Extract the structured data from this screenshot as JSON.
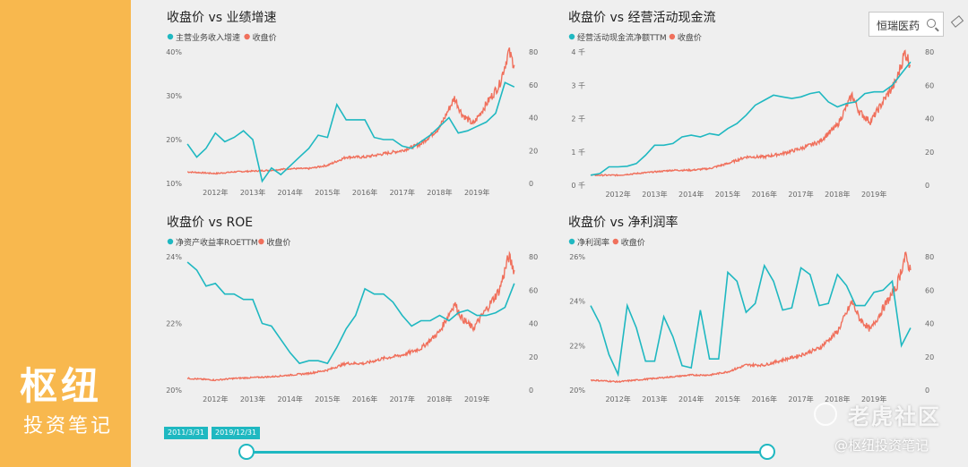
{
  "brand": {
    "title": "枢纽",
    "subtitle": "投资笔记"
  },
  "search": {
    "value": "恒瑞医药"
  },
  "slider": {
    "start": "2011/3/31",
    "end": "2019/12/31"
  },
  "watermark": {
    "site": "老虎社区",
    "author": "@枢纽投资笔记"
  },
  "colors": {
    "teal": "#1fb8c1",
    "red": "#f0705c",
    "sidebar": "#f8b84e"
  },
  "chart_data": [
    {
      "type": "line",
      "title": "收盘价 vs 业绩增速",
      "x_ticks": [
        "2012年",
        "2013年",
        "2014年",
        "2015年",
        "2016年",
        "2017年",
        "2018年",
        "2019年"
      ],
      "left_ticks": [
        "40%",
        "30%",
        "20%",
        "10%"
      ],
      "right_ticks": [
        "80",
        "60",
        "40",
        "20",
        "0"
      ],
      "ylim_left": [
        10,
        40
      ],
      "ylim_right": [
        0,
        80
      ],
      "series": [
        {
          "name": "主营业务收入增速",
          "axis": "left",
          "x": [
            2011.25,
            2011.5,
            2011.75,
            2012.0,
            2012.25,
            2012.5,
            2012.75,
            2013.0,
            2013.25,
            2013.5,
            2013.75,
            2014.0,
            2014.25,
            2014.5,
            2014.75,
            2015.0,
            2015.25,
            2015.5,
            2015.75,
            2016.0,
            2016.25,
            2016.5,
            2016.75,
            2017.0,
            2017.25,
            2017.5,
            2017.75,
            2018.0,
            2018.25,
            2018.5,
            2018.75,
            2019.0,
            2019.25,
            2019.5,
            2019.75,
            2020.0
          ],
          "values": [
            19,
            16,
            18,
            21.5,
            19.5,
            20.5,
            22,
            20,
            10.5,
            13.5,
            12,
            14,
            16,
            18,
            21,
            20.5,
            28,
            24.5,
            24.5,
            24.5,
            20.5,
            20,
            20,
            18.5,
            18,
            19.5,
            21,
            23,
            25,
            21.5,
            22,
            23,
            24,
            26,
            33,
            32
          ]
        },
        {
          "name": "收盘价",
          "axis": "right",
          "anchors": [
            [
              2011.25,
              7
            ],
            [
              2012.0,
              6
            ],
            [
              2012.5,
              7
            ],
            [
              2013.0,
              7.5
            ],
            [
              2013.5,
              8
            ],
            [
              2014.0,
              9
            ],
            [
              2014.5,
              9
            ],
            [
              2015.0,
              11
            ],
            [
              2015.5,
              16
            ],
            [
              2016.0,
              16
            ],
            [
              2016.5,
              18
            ],
            [
              2017.0,
              20
            ],
            [
              2017.5,
              24
            ],
            [
              2018.0,
              34
            ],
            [
              2018.4,
              52
            ],
            [
              2018.6,
              42
            ],
            [
              2018.9,
              36
            ],
            [
              2019.3,
              50
            ],
            [
              2019.6,
              60
            ],
            [
              2019.85,
              80
            ],
            [
              2020.0,
              72
            ]
          ]
        }
      ]
    },
    {
      "type": "line",
      "title": "收盘价 vs 经营活动现金流",
      "x_ticks": [
        "2012年",
        "2013年",
        "2014年",
        "2015年",
        "2016年",
        "2017年",
        "2018年",
        "2019年"
      ],
      "left_ticks": [
        "4 千",
        "3 千",
        "2 千",
        "1 千",
        "0 千"
      ],
      "right_ticks": [
        "80",
        "60",
        "40",
        "20",
        "0"
      ],
      "ylim_left": [
        0,
        4000
      ],
      "ylim_right": [
        0,
        80
      ],
      "series": [
        {
          "name": "经营活动现金流净额TTM",
          "axis": "left",
          "x": [
            2011.25,
            2011.5,
            2011.75,
            2012.0,
            2012.25,
            2012.5,
            2012.75,
            2013.0,
            2013.25,
            2013.5,
            2013.75,
            2014.0,
            2014.25,
            2014.5,
            2014.75,
            2015.0,
            2015.25,
            2015.5,
            2015.75,
            2016.0,
            2016.25,
            2016.5,
            2016.75,
            2017.0,
            2017.25,
            2017.5,
            2017.75,
            2018.0,
            2018.25,
            2018.5,
            2018.75,
            2019.0,
            2019.25,
            2019.5,
            2019.75,
            2020.0
          ],
          "values": [
            300,
            350,
            550,
            550,
            570,
            650,
            900,
            1200,
            1200,
            1250,
            1450,
            1500,
            1450,
            1550,
            1500,
            1700,
            1850,
            2100,
            2400,
            2550,
            2700,
            2650,
            2600,
            2650,
            2750,
            2800,
            2500,
            2350,
            2450,
            2500,
            2750,
            2800,
            2800,
            3000,
            3350,
            3700
          ]
        },
        {
          "name": "收盘价",
          "axis": "right",
          "anchors": [
            [
              2011.25,
              6
            ],
            [
              2012.0,
              6
            ],
            [
              2012.5,
              7
            ],
            [
              2013.0,
              8
            ],
            [
              2013.5,
              9
            ],
            [
              2014.0,
              9
            ],
            [
              2014.5,
              10
            ],
            [
              2015.0,
              13
            ],
            [
              2015.5,
              17
            ],
            [
              2016.0,
              17
            ],
            [
              2016.5,
              19
            ],
            [
              2017.0,
              22
            ],
            [
              2017.5,
              26
            ],
            [
              2018.0,
              36
            ],
            [
              2018.4,
              54
            ],
            [
              2018.6,
              44
            ],
            [
              2018.9,
              38
            ],
            [
              2019.3,
              52
            ],
            [
              2019.6,
              62
            ],
            [
              2019.85,
              80
            ],
            [
              2020.0,
              72
            ]
          ]
        }
      ]
    },
    {
      "type": "line",
      "title": "收盘价 vs ROE",
      "x_ticks": [
        "2012年",
        "2013年",
        "2014年",
        "2015年",
        "2016年",
        "2017年",
        "2018年",
        "2019年"
      ],
      "left_ticks": [
        "24%",
        "22%",
        "20%"
      ],
      "right_ticks": [
        "80",
        "60",
        "40",
        "20",
        "0"
      ],
      "ylim_left": [
        20,
        25
      ],
      "ylim_right": [
        0,
        80
      ],
      "series": [
        {
          "name": "净资产收益率ROETTM",
          "axis": "left",
          "x": [
            2011.25,
            2011.5,
            2011.75,
            2012.0,
            2012.25,
            2012.5,
            2012.75,
            2013.0,
            2013.25,
            2013.5,
            2013.75,
            2014.0,
            2014.25,
            2014.5,
            2014.75,
            2015.0,
            2015.25,
            2015.5,
            2015.75,
            2016.0,
            2016.25,
            2016.5,
            2016.75,
            2017.0,
            2017.25,
            2017.5,
            2017.75,
            2018.0,
            2018.25,
            2018.5,
            2018.75,
            2019.0,
            2019.25,
            2019.5,
            2019.75,
            2020.0
          ],
          "values": [
            24.8,
            24.5,
            23.9,
            24.0,
            23.6,
            23.6,
            23.4,
            23.4,
            22.5,
            22.4,
            21.9,
            21.4,
            21.0,
            21.1,
            21.1,
            21.0,
            21.6,
            22.3,
            22.8,
            23.8,
            23.6,
            23.6,
            23.3,
            22.8,
            22.4,
            22.6,
            22.6,
            22.8,
            22.6,
            22.9,
            23.0,
            22.8,
            22.8,
            22.9,
            23.1,
            24.0
          ]
        },
        {
          "name": "收盘价",
          "axis": "right",
          "anchors": [
            [
              2011.25,
              7
            ],
            [
              2012.0,
              6
            ],
            [
              2012.5,
              7
            ],
            [
              2013.0,
              7.5
            ],
            [
              2013.5,
              8
            ],
            [
              2014.0,
              9
            ],
            [
              2014.5,
              10
            ],
            [
              2015.0,
              12
            ],
            [
              2015.5,
              16
            ],
            [
              2016.0,
              16
            ],
            [
              2016.5,
              19
            ],
            [
              2017.0,
              21
            ],
            [
              2017.5,
              25
            ],
            [
              2018.0,
              35
            ],
            [
              2018.4,
              52
            ],
            [
              2018.6,
              43
            ],
            [
              2018.9,
              37
            ],
            [
              2019.3,
              50
            ],
            [
              2019.6,
              60
            ],
            [
              2019.85,
              80
            ],
            [
              2020.0,
              72
            ]
          ]
        }
      ]
    },
    {
      "type": "line",
      "title": "收盘价 vs 净利润率",
      "x_ticks": [
        "2012年",
        "2013年",
        "2014年",
        "2015年",
        "2016年",
        "2017年",
        "2018年",
        "2019年"
      ],
      "left_ticks": [
        "26%",
        "24%",
        "22%",
        "20%"
      ],
      "right_ticks": [
        "80",
        "60",
        "40",
        "20",
        "0"
      ],
      "ylim_left": [
        20,
        26
      ],
      "ylim_right": [
        0,
        80
      ],
      "series": [
        {
          "name": "净利润率",
          "axis": "left",
          "x": [
            2011.25,
            2011.5,
            2011.75,
            2012.0,
            2012.25,
            2012.5,
            2012.75,
            2013.0,
            2013.25,
            2013.5,
            2013.75,
            2014.0,
            2014.25,
            2014.5,
            2014.75,
            2015.0,
            2015.25,
            2015.5,
            2015.75,
            2016.0,
            2016.25,
            2016.5,
            2016.75,
            2017.0,
            2017.25,
            2017.5,
            2017.75,
            2018.0,
            2018.25,
            2018.5,
            2018.75,
            2019.0,
            2019.25,
            2019.5,
            2019.75,
            2020.0
          ],
          "values": [
            23.8,
            23.0,
            21.6,
            20.7,
            23.8,
            22.8,
            21.3,
            21.3,
            23.3,
            22.4,
            21.1,
            21.0,
            23.6,
            21.4,
            21.4,
            25.3,
            24.9,
            23.5,
            23.9,
            25.6,
            24.9,
            23.6,
            23.7,
            25.5,
            25.2,
            23.8,
            23.9,
            25.2,
            24.7,
            23.8,
            23.8,
            24.4,
            24.5,
            24.9,
            22.0,
            22.8
          ]
        },
        {
          "name": "收盘价",
          "axis": "right",
          "anchors": [
            [
              2011.25,
              6
            ],
            [
              2012.0,
              5
            ],
            [
              2012.5,
              6
            ],
            [
              2013.0,
              7
            ],
            [
              2013.5,
              8
            ],
            [
              2014.0,
              9
            ],
            [
              2014.5,
              9
            ],
            [
              2015.0,
              11
            ],
            [
              2015.5,
              15
            ],
            [
              2016.0,
              15
            ],
            [
              2016.5,
              18
            ],
            [
              2017.0,
              21
            ],
            [
              2017.5,
              25
            ],
            [
              2018.0,
              35
            ],
            [
              2018.4,
              53
            ],
            [
              2018.6,
              43
            ],
            [
              2018.9,
              36
            ],
            [
              2019.3,
              51
            ],
            [
              2019.6,
              61
            ],
            [
              2019.85,
              80
            ],
            [
              2020.0,
              72
            ]
          ]
        }
      ]
    }
  ]
}
